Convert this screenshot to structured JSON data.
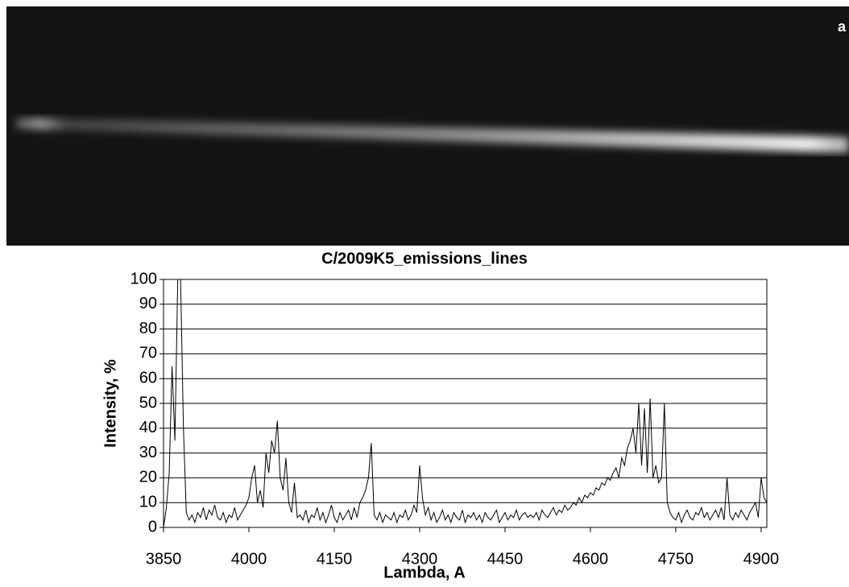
{
  "image_label": "a",
  "chart_data": {
    "type": "line",
    "title": "C/2009K5_emissions_lines",
    "x_label": "Lambda, A",
    "y_label": "Intensity, %",
    "xlim": [
      3850,
      4910
    ],
    "ylim": [
      0,
      100
    ],
    "xticks": [
      3850,
      4000,
      4150,
      4300,
      4450,
      4600,
      4750,
      4900
    ],
    "yticks": [
      0,
      10,
      20,
      30,
      40,
      50,
      60,
      70,
      80,
      90,
      100
    ],
    "grid": true,
    "series": [
      {
        "color": "#000000",
        "x": [
          3850,
          3855,
          3860,
          3865,
          3870,
          3875,
          3880,
          3885,
          3890,
          3895,
          3900,
          3905,
          3910,
          3915,
          3920,
          3925,
          3930,
          3935,
          3940,
          3945,
          3950,
          3955,
          3960,
          3965,
          3970,
          3975,
          3980,
          3985,
          3990,
          3995,
          4000,
          4005,
          4010,
          4015,
          4020,
          4025,
          4030,
          4035,
          4040,
          4045,
          4050,
          4055,
          4060,
          4065,
          4070,
          4075,
          4080,
          4085,
          4090,
          4095,
          4100,
          4105,
          4110,
          4115,
          4120,
          4125,
          4130,
          4135,
          4140,
          4145,
          4150,
          4155,
          4160,
          4165,
          4170,
          4175,
          4180,
          4185,
          4190,
          4195,
          4200,
          4205,
          4210,
          4215,
          4220,
          4225,
          4230,
          4235,
          4240,
          4245,
          4250,
          4255,
          4260,
          4265,
          4270,
          4275,
          4280,
          4285,
          4290,
          4295,
          4300,
          4305,
          4310,
          4315,
          4320,
          4325,
          4330,
          4335,
          4340,
          4345,
          4350,
          4355,
          4360,
          4365,
          4370,
          4375,
          4380,
          4385,
          4390,
          4395,
          4400,
          4405,
          4410,
          4415,
          4420,
          4425,
          4430,
          4435,
          4440,
          4445,
          4450,
          4455,
          4460,
          4465,
          4470,
          4475,
          4480,
          4485,
          4490,
          4495,
          4500,
          4505,
          4510,
          4515,
          4520,
          4525,
          4530,
          4535,
          4540,
          4545,
          4550,
          4555,
          4560,
          4565,
          4570,
          4575,
          4580,
          4585,
          4590,
          4595,
          4600,
          4605,
          4610,
          4615,
          4620,
          4625,
          4630,
          4635,
          4640,
          4645,
          4650,
          4655,
          4660,
          4665,
          4670,
          4675,
          4680,
          4685,
          4690,
          4695,
          4700,
          4705,
          4710,
          4715,
          4720,
          4725,
          4730,
          4735,
          4740,
          4745,
          4750,
          4755,
          4760,
          4765,
          4770,
          4775,
          4780,
          4785,
          4790,
          4795,
          4800,
          4805,
          4810,
          4815,
          4820,
          4825,
          4830,
          4835,
          4840,
          4845,
          4850,
          4855,
          4860,
          4865,
          4870,
          4875,
          4880,
          4885,
          4890,
          4895,
          4900,
          4905,
          4910
        ],
        "values": [
          0,
          8,
          22,
          65,
          35,
          100,
          100,
          40,
          6,
          3,
          5,
          2,
          6,
          4,
          8,
          3,
          7,
          5,
          9,
          4,
          3,
          6,
          2,
          5,
          4,
          8,
          3,
          5,
          7,
          9,
          12,
          20,
          25,
          10,
          15,
          8,
          30,
          22,
          35,
          30,
          43,
          20,
          15,
          28,
          10,
          6,
          18,
          4,
          5,
          3,
          7,
          2,
          5,
          4,
          8,
          3,
          6,
          2,
          5,
          9,
          4,
          2,
          6,
          3,
          5,
          7,
          3,
          8,
          4,
          10,
          12,
          15,
          20,
          34,
          5,
          3,
          6,
          2,
          5,
          4,
          3,
          6,
          2,
          5,
          4,
          7,
          3,
          5,
          9,
          6,
          25,
          12,
          5,
          8,
          3,
          6,
          2,
          4,
          7,
          3,
          5,
          2,
          6,
          4,
          3,
          7,
          2,
          5,
          4,
          6,
          3,
          5,
          2,
          6,
          4,
          3,
          5,
          7,
          2,
          4,
          6,
          3,
          5,
          4,
          7,
          3,
          5,
          6,
          4,
          5,
          4,
          6,
          3,
          7,
          5,
          4,
          6,
          8,
          5,
          7,
          6,
          9,
          7,
          8,
          10,
          9,
          12,
          10,
          13,
          12,
          14,
          13,
          16,
          15,
          18,
          17,
          20,
          19,
          22,
          24,
          20,
          28,
          25,
          32,
          35,
          40,
          30,
          50,
          25,
          48,
          22,
          52,
          20,
          25,
          18,
          20,
          50,
          10,
          6,
          4,
          3,
          6,
          2,
          5,
          7,
          4,
          3,
          6,
          5,
          8,
          4,
          6,
          3,
          5,
          7,
          4,
          8,
          3,
          20,
          5,
          3,
          6,
          4,
          7,
          5,
          3,
          6,
          8,
          10,
          4,
          20,
          12,
          10
        ]
      }
    ]
  }
}
